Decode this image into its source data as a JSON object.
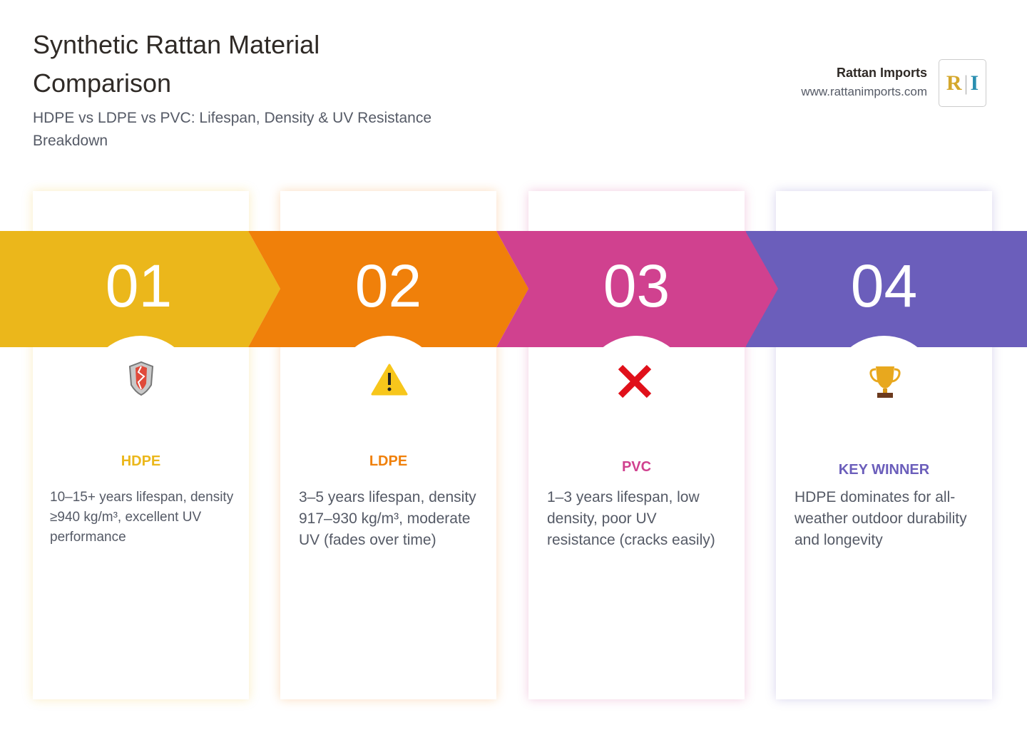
{
  "header": {
    "title": "Synthetic Rattan Material Comparison",
    "subtitle": "HDPE vs LDPE vs PVC: Lifespan, Density & UV Resistance Breakdown"
  },
  "brand": {
    "name": "Rattan Imports",
    "url": "www.rattanimports.com",
    "logo_letters": [
      "R",
      "I"
    ]
  },
  "cards": [
    {
      "number": "01",
      "title": "HDPE",
      "text": "10–15+ years lifespan, density ≥940 kg/m³, excellent UV performance",
      "color": "#ebb71b"
    },
    {
      "number": "02",
      "title": "LDPE",
      "text": "3–5 years lifespan, density 917–930 kg/m³, moderate UV (fades over time)",
      "color": "#f0800a"
    },
    {
      "number": "03",
      "title": "PVC",
      "text": "1–3 years lifespan, low density, poor UV resistance (cracks easily)",
      "color": "#d0418f"
    },
    {
      "number": "04",
      "title": "KEY WINNER",
      "text": "HDPE dominates for all-weather outdoor durability and longevity",
      "color": "#6b5ebb"
    }
  ]
}
